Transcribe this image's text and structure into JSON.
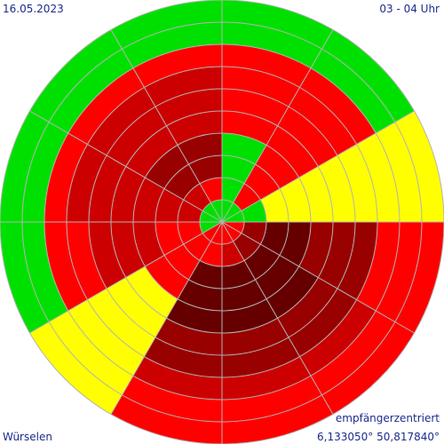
{
  "header": {
    "date": "16.05.2023",
    "time_range": "03 - 04 Uhr"
  },
  "footer": {
    "mode": "empfängerzentriert",
    "location": "Würselen",
    "coordinates": "6,133050° 50,817840°"
  },
  "colors": {
    "background": "#ffffff",
    "grid": "#b4b4b4",
    "text": "#1c2c8c",
    "level_0": "#00e000",
    "level_1": "#ffff00",
    "level_2": "#ff0000",
    "level_3": "#cc0000",
    "level_4": "#990000",
    "level_5": "#660000"
  },
  "chart_data": {
    "type": "polar_sector_rings",
    "sectors": 12,
    "sector_width_deg": 30,
    "ring_count": 10,
    "start_direction": "north",
    "direction": "clockwise",
    "sector_rings": [
      [
        "level_0",
        "level_0",
        "level_0",
        "level_0",
        "level_2",
        "level_2",
        "level_2",
        "level_2",
        "level_0",
        "level_0"
      ],
      [
        "level_0",
        "level_2",
        "level_2",
        "level_2",
        "level_2",
        "level_2",
        "level_2",
        "level_2",
        "level_0",
        "level_0"
      ],
      [
        "level_0",
        "level_0",
        "level_1",
        "level_1",
        "level_1",
        "level_1",
        "level_1",
        "level_1",
        "level_1",
        "level_1"
      ],
      [
        "level_2",
        "level_4",
        "level_5",
        "level_5",
        "level_4",
        "level_4",
        "level_4",
        "level_2",
        "level_2",
        "level_2"
      ],
      [
        "level_2",
        "level_4",
        "level_5",
        "level_5",
        "level_5",
        "level_4",
        "level_4",
        "level_3",
        "level_2",
        "level_2"
      ],
      [
        "level_2",
        "level_3",
        "level_5",
        "level_5",
        "level_5",
        "level_4",
        "level_4",
        "level_3",
        "level_2",
        "level_2"
      ],
      [
        "level_2",
        "level_2",
        "level_5",
        "level_5",
        "level_5",
        "level_4",
        "level_4",
        "level_3",
        "level_2",
        "level_2"
      ],
      [
        "level_2",
        "level_2",
        "level_2",
        "level_2",
        "level_1",
        "level_1",
        "level_1",
        "level_1",
        "level_1",
        "level_1"
      ],
      [
        "level_0",
        "level_2",
        "level_2",
        "level_3",
        "level_3",
        "level_3",
        "level_2",
        "level_2",
        "level_0",
        "level_0"
      ],
      [
        "level_0",
        "level_3",
        "level_3",
        "level_3",
        "level_3",
        "level_3",
        "level_3",
        "level_2",
        "level_0",
        "level_0"
      ],
      [
        "level_0",
        "level_3",
        "level_4",
        "level_4",
        "level_3",
        "level_3",
        "level_3",
        "level_2",
        "level_0",
        "level_0"
      ],
      [
        "level_0",
        "level_2",
        "level_4",
        "level_4",
        "level_3",
        "level_3",
        "level_3",
        "level_2",
        "level_0",
        "level_0"
      ]
    ]
  }
}
